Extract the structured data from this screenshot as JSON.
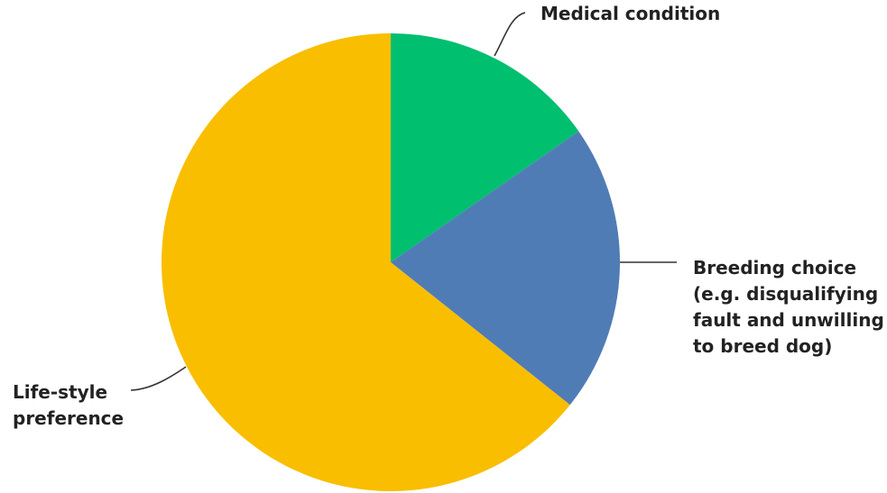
{
  "chart_data": {
    "type": "pie",
    "start_angle_deg": 0,
    "direction": "clockwise",
    "slices": [
      {
        "label": [
          "Medical condition"
        ],
        "value": 15.3,
        "color": "#00BF6F"
      },
      {
        "label": [
          "Breeding choice",
          "(e.g. disqualifying",
          "fault and unwilling",
          "to breed dog)"
        ],
        "value": 20.4,
        "color": "#507CB6"
      },
      {
        "label": [
          "Life-style",
          "preference"
        ],
        "value": 64.3,
        "color": "#F9BE00"
      }
    ]
  }
}
